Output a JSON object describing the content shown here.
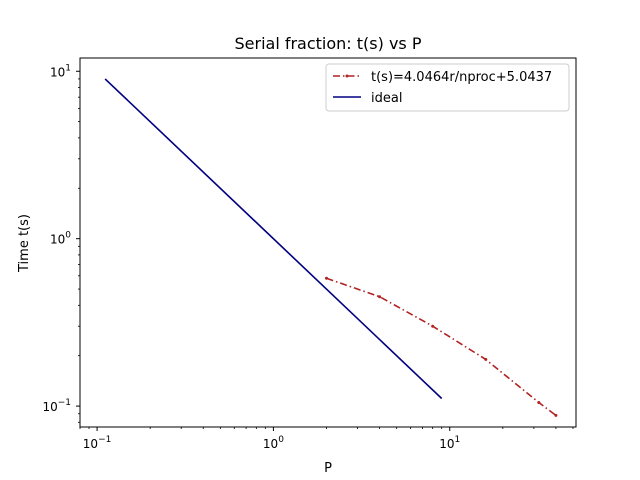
{
  "chart_data": {
    "type": "line",
    "title": "Serial fraction: t(s) vs P",
    "xlabel": "P",
    "ylabel": "Time t(s)",
    "xscale": "log",
    "yscale": "log",
    "xlim": [
      0.08,
      52
    ],
    "ylim": [
      0.075,
      12
    ],
    "x_ticks": [
      {
        "value": 0.1,
        "base": "10",
        "exp": "−1"
      },
      {
        "value": 1,
        "base": "10",
        "exp": "0"
      },
      {
        "value": 10,
        "base": "10",
        "exp": "1"
      }
    ],
    "y_ticks": [
      {
        "value": 0.1,
        "base": "10",
        "exp": "−1"
      },
      {
        "value": 1,
        "base": "10",
        "exp": "0"
      },
      {
        "value": 10,
        "base": "10",
        "exp": "1"
      }
    ],
    "grid": false,
    "legend_position": "top-right",
    "series": [
      {
        "name": "t(s)=4.0464r/nproc+5.0437",
        "color": "#b22222",
        "style": "dash-dot",
        "marker": "point",
        "x": [
          2,
          4,
          8,
          16,
          32,
          40
        ],
        "y": [
          0.58,
          0.45,
          0.3,
          0.19,
          0.105,
          0.088
        ]
      },
      {
        "name": "ideal",
        "color": "#000080",
        "style": "solid",
        "x": [
          0.111,
          9.0
        ],
        "y": [
          9.0,
          0.111
        ]
      }
    ]
  }
}
